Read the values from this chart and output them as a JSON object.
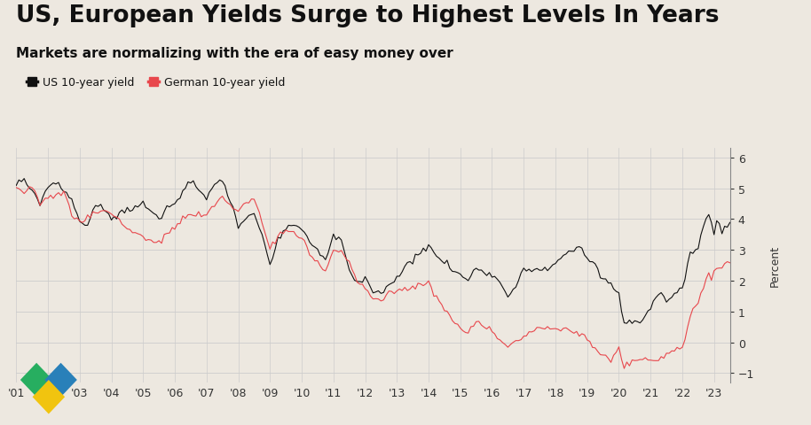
{
  "title": "US, European Yields Surge to Highest Levels In Years",
  "subtitle": "Markets are normalizing with the era of easy money over",
  "legend_labels": [
    "US 10-year yield",
    "German 10-year yield"
  ],
  "legend_colors": [
    "#111111",
    "#e8474c"
  ],
  "line_colors": [
    "#111111",
    "#e8474c"
  ],
  "ylabel": "Percent",
  "background_color": "#ede8e0",
  "ylim": [
    -1.3,
    6.3
  ],
  "yticks": [
    -1,
    0,
    1,
    2,
    3,
    4,
    5,
    6
  ],
  "grid_color": "#cccccc",
  "title_fontsize": 19,
  "subtitle_fontsize": 11,
  "axis_fontsize": 9,
  "us_keypoints": [
    [
      0,
      5.1
    ],
    [
      3,
      5.25
    ],
    [
      9,
      4.57
    ],
    [
      12,
      5.0
    ],
    [
      15,
      5.2
    ],
    [
      21,
      4.6
    ],
    [
      24,
      3.9
    ],
    [
      27,
      3.8
    ],
    [
      30,
      4.5
    ],
    [
      36,
      4.1
    ],
    [
      42,
      4.3
    ],
    [
      48,
      4.55
    ],
    [
      54,
      4.0
    ],
    [
      60,
      4.5
    ],
    [
      66,
      5.2
    ],
    [
      72,
      4.7
    ],
    [
      78,
      5.26
    ],
    [
      84,
      3.8
    ],
    [
      87,
      4.0
    ],
    [
      90,
      4.1
    ],
    [
      93,
      3.5
    ],
    [
      96,
      2.4
    ],
    [
      99,
      3.3
    ],
    [
      102,
      3.7
    ],
    [
      108,
      3.7
    ],
    [
      111,
      3.2
    ],
    [
      114,
      2.95
    ],
    [
      117,
      2.6
    ],
    [
      120,
      3.4
    ],
    [
      123,
      3.2
    ],
    [
      126,
      2.25
    ],
    [
      129,
      1.9
    ],
    [
      132,
      2.0
    ],
    [
      135,
      1.65
    ],
    [
      138,
      1.55
    ],
    [
      141,
      1.8
    ],
    [
      144,
      2.05
    ],
    [
      147,
      2.3
    ],
    [
      150,
      2.65
    ],
    [
      153,
      2.9
    ],
    [
      156,
      3.05
    ],
    [
      159,
      2.7
    ],
    [
      162,
      2.55
    ],
    [
      165,
      2.3
    ],
    [
      168,
      2.1
    ],
    [
      171,
      2.0
    ],
    [
      174,
      2.35
    ],
    [
      177,
      2.25
    ],
    [
      180,
      2.27
    ],
    [
      183,
      1.85
    ],
    [
      186,
      1.5
    ],
    [
      189,
      1.8
    ],
    [
      192,
      2.45
    ],
    [
      195,
      2.35
    ],
    [
      198,
      2.3
    ],
    [
      201,
      2.4
    ],
    [
      204,
      2.58
    ],
    [
      207,
      2.85
    ],
    [
      210,
      2.95
    ],
    [
      213,
      3.1
    ],
    [
      216,
      2.65
    ],
    [
      219,
      2.5
    ],
    [
      222,
      2.05
    ],
    [
      225,
      1.85
    ],
    [
      228,
      1.58
    ],
    [
      229,
      1.1
    ],
    [
      230,
      0.55
    ],
    [
      231,
      0.65
    ],
    [
      234,
      0.65
    ],
    [
      237,
      0.7
    ],
    [
      240,
      1.08
    ],
    [
      243,
      1.65
    ],
    [
      246,
      1.3
    ],
    [
      249,
      1.55
    ],
    [
      252,
      1.75
    ],
    [
      253,
      2.1
    ],
    [
      254,
      2.5
    ],
    [
      255,
      2.9
    ],
    [
      256,
      3.0
    ],
    [
      258,
      3.01
    ],
    [
      259,
      3.5
    ],
    [
      260,
      3.8
    ],
    [
      261,
      3.95
    ],
    [
      262,
      4.2
    ],
    [
      263,
      3.8
    ],
    [
      264,
      3.55
    ],
    [
      265,
      3.9
    ],
    [
      266,
      3.75
    ],
    [
      267,
      3.6
    ],
    [
      268,
      3.75
    ],
    [
      270,
      3.84
    ]
  ],
  "de_keypoints": [
    [
      0,
      4.95
    ],
    [
      3,
      4.85
    ],
    [
      6,
      4.95
    ],
    [
      9,
      4.5
    ],
    [
      12,
      4.7
    ],
    [
      15,
      4.8
    ],
    [
      18,
      4.9
    ],
    [
      21,
      4.2
    ],
    [
      24,
      3.9
    ],
    [
      27,
      4.1
    ],
    [
      30,
      4.3
    ],
    [
      33,
      4.25
    ],
    [
      36,
      4.2
    ],
    [
      42,
      3.7
    ],
    [
      48,
      3.4
    ],
    [
      54,
      3.2
    ],
    [
      60,
      3.7
    ],
    [
      63,
      4.0
    ],
    [
      66,
      4.1
    ],
    [
      72,
      4.05
    ],
    [
      75,
      4.4
    ],
    [
      78,
      4.65
    ],
    [
      84,
      4.15
    ],
    [
      87,
      4.5
    ],
    [
      90,
      4.6
    ],
    [
      93,
      3.8
    ],
    [
      96,
      3.0
    ],
    [
      99,
      3.4
    ],
    [
      102,
      3.6
    ],
    [
      108,
      3.4
    ],
    [
      111,
      2.8
    ],
    [
      114,
      2.6
    ],
    [
      117,
      2.3
    ],
    [
      120,
      3.0
    ],
    [
      123,
      2.9
    ],
    [
      126,
      2.6
    ],
    [
      129,
      2.0
    ],
    [
      132,
      1.8
    ],
    [
      135,
      1.4
    ],
    [
      138,
      1.3
    ],
    [
      141,
      1.55
    ],
    [
      144,
      1.7
    ],
    [
      147,
      1.65
    ],
    [
      150,
      1.8
    ],
    [
      153,
      1.9
    ],
    [
      156,
      1.95
    ],
    [
      159,
      1.5
    ],
    [
      162,
      1.1
    ],
    [
      165,
      0.7
    ],
    [
      168,
      0.45
    ],
    [
      171,
      0.3
    ],
    [
      174,
      0.7
    ],
    [
      177,
      0.55
    ],
    [
      180,
      0.4
    ],
    [
      183,
      0.1
    ],
    [
      186,
      -0.12
    ],
    [
      189,
      0.1
    ],
    [
      192,
      0.2
    ],
    [
      195,
      0.4
    ],
    [
      198,
      0.55
    ],
    [
      201,
      0.5
    ],
    [
      204,
      0.45
    ],
    [
      207,
      0.5
    ],
    [
      210,
      0.4
    ],
    [
      213,
      0.35
    ],
    [
      216,
      0.2
    ],
    [
      219,
      -0.1
    ],
    [
      222,
      -0.35
    ],
    [
      225,
      -0.6
    ],
    [
      228,
      -0.22
    ],
    [
      229,
      -0.5
    ],
    [
      230,
      -0.85
    ],
    [
      231,
      -0.7
    ],
    [
      234,
      -0.5
    ],
    [
      237,
      -0.55
    ],
    [
      240,
      -0.55
    ],
    [
      243,
      -0.5
    ],
    [
      246,
      -0.4
    ],
    [
      249,
      -0.25
    ],
    [
      252,
      -0.12
    ],
    [
      253,
      0.2
    ],
    [
      254,
      0.6
    ],
    [
      255,
      0.9
    ],
    [
      256,
      1.1
    ],
    [
      258,
      1.25
    ],
    [
      259,
      1.6
    ],
    [
      260,
      1.85
    ],
    [
      261,
      2.1
    ],
    [
      262,
      2.3
    ],
    [
      263,
      2.0
    ],
    [
      264,
      2.3
    ],
    [
      265,
      2.45
    ],
    [
      266,
      2.5
    ],
    [
      267,
      2.4
    ],
    [
      268,
      2.5
    ],
    [
      270,
      2.6
    ]
  ]
}
